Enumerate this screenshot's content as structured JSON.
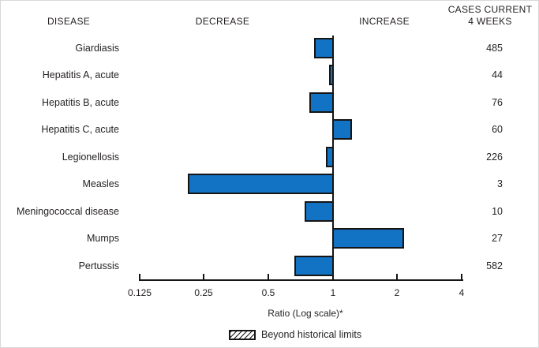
{
  "header": {
    "disease": "DISEASE",
    "decrease": "DECREASE",
    "increase": "INCREASE",
    "cases_line1": "CASES CURRENT",
    "cases_line2": "4 WEEKS"
  },
  "chart_data": {
    "type": "bar",
    "orientation": "horizontal",
    "scale": "log2",
    "title": "",
    "xlabel": "Ratio (Log scale)*",
    "axis": {
      "ticks": [
        0.125,
        0.25,
        0.5,
        1,
        2,
        4
      ],
      "tick_labels": [
        "0.125",
        "0.25",
        "0.5",
        "1",
        "2",
        "4"
      ],
      "baseline_value": 1,
      "xlim": [
        0.125,
        4
      ]
    },
    "rows": [
      {
        "disease": "Giardiasis",
        "ratio": 0.82,
        "cases": "485",
        "beyond_historical_limits": false
      },
      {
        "disease": "Hepatitis A, acute",
        "ratio": 0.96,
        "cases": "44",
        "beyond_historical_limits": false
      },
      {
        "disease": "Hepatitis B, acute",
        "ratio": 0.78,
        "cases": "76",
        "beyond_historical_limits": false
      },
      {
        "disease": "Hepatitis C, acute",
        "ratio": 1.23,
        "cases": "60",
        "beyond_historical_limits": false
      },
      {
        "disease": "Legionellosis",
        "ratio": 0.93,
        "cases": "226",
        "beyond_historical_limits": false
      },
      {
        "disease": "Measles",
        "ratio": 0.21,
        "cases": "3",
        "beyond_historical_limits": false
      },
      {
        "disease": "Meningococcal disease",
        "ratio": 0.74,
        "cases": "10",
        "beyond_historical_limits": false
      },
      {
        "disease": "Mumps",
        "ratio": 2.16,
        "cases": "27",
        "beyond_historical_limits": false
      },
      {
        "disease": "Pertussis",
        "ratio": 0.66,
        "cases": "582",
        "beyond_historical_limits": false
      }
    ],
    "legend": {
      "label": "Beyond historical limits",
      "swatch": "diagonal-hatch"
    },
    "colors": {
      "bar_fill": "#1272c3",
      "bar_border": "#151515",
      "text": "#231f20"
    }
  }
}
